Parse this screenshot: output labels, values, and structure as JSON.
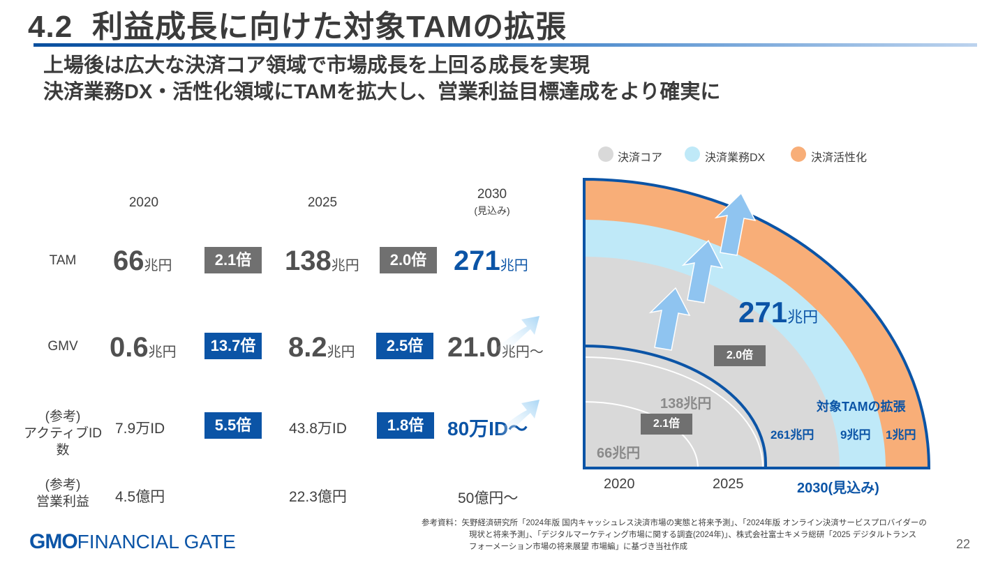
{
  "header": {
    "section_no": "4.2",
    "title": "利益成長に向けた対象TAMの拡張",
    "subtitle_1": "上場後は広大な決済コア領域で市場成長を上回る成長を実現",
    "subtitle_2": "決済業務DX・活性化領域にTAMを拡大し、営業利益目標達成をより確実に"
  },
  "table": {
    "years": [
      "2020",
      "2025",
      "2030"
    ],
    "forecast_note": "(見込み)",
    "rows": {
      "tam": {
        "label": "TAM",
        "v2020": "66",
        "u2020": "兆円",
        "m1": "2.1倍",
        "v2025": "138",
        "u2025": "兆円",
        "m2": "2.0倍",
        "v2030": "271",
        "u2030": "兆円"
      },
      "gmv": {
        "label": "GMV",
        "v2020": "0.6",
        "u2020": "兆円",
        "m1": "13.7倍",
        "v2025": "8.2",
        "u2025": "兆円",
        "m2": "2.5倍",
        "v2030": "21.0",
        "u2030": "兆円〜"
      },
      "active": {
        "label_1": "(参考)",
        "label_2": "アクティブID数",
        "v2020": "7.9万ID",
        "m1": "5.5倍",
        "v2025": "43.8万ID",
        "m2": "1.8倍",
        "v2030": "80万ID〜"
      },
      "profit": {
        "label_1": "(参考)",
        "label_2": "営業利益",
        "v2020": "4.5億円",
        "v2025": "22.3億円",
        "v2030": "50億円〜"
      }
    }
  },
  "legend": [
    {
      "label": "決済コア",
      "color": "#d9d9d9"
    },
    {
      "label": "決済業務DX",
      "color": "#bfe9f8"
    },
    {
      "label": "決済活性化",
      "color": "#f8ae78"
    }
  ],
  "diagram": {
    "tam_2030_value": "271",
    "tam_2030_unit": "兆円",
    "label_138": "138兆円",
    "label_66": "66兆円",
    "badge_20": "2.0倍",
    "badge_21": "2.1倍",
    "expansion_title": "対象TAMの拡張",
    "seg_core": "261兆円",
    "seg_dx": "9兆円",
    "seg_act": "1兆円",
    "axis_2020": "2020",
    "axis_2025": "2025",
    "axis_2030": "2030(見込み)"
  },
  "footer": {
    "source_1": "参考資料：矢野経済研究所「2024年版 国内キャッシュレス決済市場の実態と将来予測」、「2024年版 オンライン決済サービスプロバイダーの",
    "source_2": "現状と将来予測」、「デジタルマーケティング市場に関する調査(2024年)」、株式会社富士キメラ総研「2025 デジタルトランス",
    "source_3": "フォーメーション市場の将来展望 市場編」に基づき当社作成",
    "logo_gmo": "GMO",
    "logo_rest": "FINANCIAL GATE",
    "page": "22"
  }
}
